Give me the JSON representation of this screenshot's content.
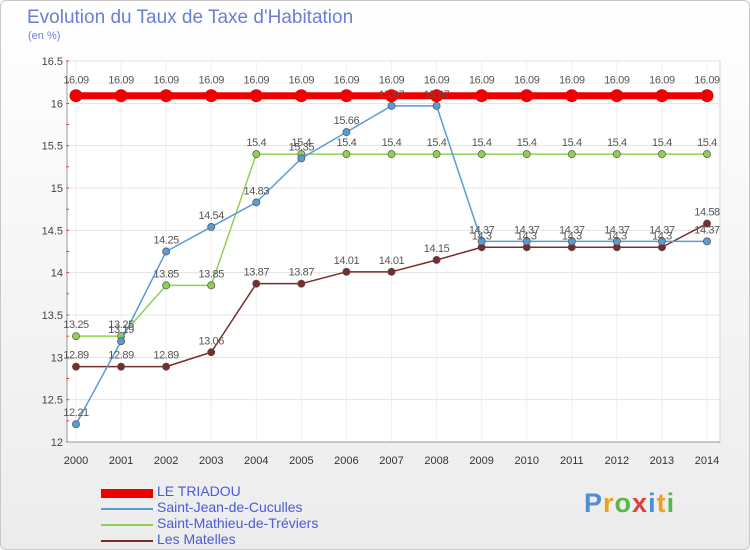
{
  "chart_data": {
    "type": "line",
    "title": "Evolution du Taux de Taxe d'Habitation",
    "unit_label": "(en %)",
    "x": [
      "2000",
      "2001",
      "2002",
      "2003",
      "2004",
      "2005",
      "2006",
      "2007",
      "2008",
      "2009",
      "2010",
      "2011",
      "2012",
      "2013",
      "2014"
    ],
    "ylim": [
      12,
      16.5
    ],
    "yticks": [
      "12",
      "12.5",
      "13",
      "13.5",
      "14",
      "14.5",
      "15",
      "15.5",
      "16",
      "16.5"
    ],
    "grid": true,
    "legend_position": "bottom-left",
    "series": [
      {
        "name": "LE TRIADOU",
        "color": "#ee0000",
        "values": [
          16.09,
          16.09,
          16.09,
          16.09,
          16.09,
          16.09,
          16.09,
          16.09,
          16.09,
          16.09,
          16.09,
          16.09,
          16.09,
          16.09,
          16.09
        ],
        "labels": [
          "16.09",
          "16.09",
          "16.09",
          "16.09",
          "16.09",
          "16.09",
          "16.09",
          "16.09",
          "16.09",
          "16.09",
          "16.09",
          "16.09",
          "16.09",
          "16.09",
          "16.09"
        ]
      },
      {
        "name": "Saint-Jean-de-Cuculles",
        "color": "#5b9bd5",
        "values": [
          12.21,
          13.19,
          14.25,
          14.54,
          14.83,
          15.35,
          15.66,
          15.97,
          15.97,
          14.37,
          14.37,
          14.37,
          14.37,
          14.37,
          14.37
        ],
        "labels": [
          "12.21",
          "13.19",
          "14.25",
          "14.54",
          "14.83",
          "15.35",
          "15.66",
          "15.97",
          "15.97",
          "14.37",
          "14.37",
          "14.37",
          "14.37",
          "14.37",
          "14.37"
        ]
      },
      {
        "name": "Saint-Mathieu-de-Tréviers",
        "color": "#8fd14f",
        "values": [
          13.25,
          13.25,
          13.85,
          13.85,
          15.4,
          15.4,
          15.4,
          15.4,
          15.4,
          15.4,
          15.4,
          15.4,
          15.4,
          15.4,
          15.4
        ],
        "labels": [
          "13.25",
          "13.25",
          "13.85",
          "13.85",
          "15.4",
          "15.4",
          "15.4",
          "15.4",
          "15.4",
          "15.4",
          "15.4",
          "15.4",
          "15.4",
          "15.4",
          "15.4"
        ]
      },
      {
        "name": "Les Matelles",
        "color": "#7a2b2b",
        "values": [
          12.89,
          12.89,
          12.89,
          13.06,
          13.87,
          13.87,
          14.01,
          14.01,
          14.15,
          14.3,
          14.3,
          14.3,
          14.3,
          14.3,
          14.58
        ],
        "labels": [
          "12.89",
          "12.89",
          "12.89",
          "13.06",
          "13.87",
          "13.87",
          "14.01",
          "14.01",
          "14.15",
          "14.3",
          "14.3",
          "14.3",
          "14.3",
          "14.3",
          "14.58"
        ]
      }
    ]
  },
  "brand": {
    "letters": [
      {
        "char": "P",
        "color": "#4d8fd6"
      },
      {
        "char": "r",
        "color": "#f0a020"
      },
      {
        "char": "o",
        "color": "#58b848"
      },
      {
        "char": "x",
        "color": "#e04040"
      },
      {
        "char": "i",
        "color": "#4d8fd6"
      },
      {
        "char": "t",
        "color": "#f0a020"
      },
      {
        "char": "i",
        "color": "#58b848"
      }
    ]
  }
}
